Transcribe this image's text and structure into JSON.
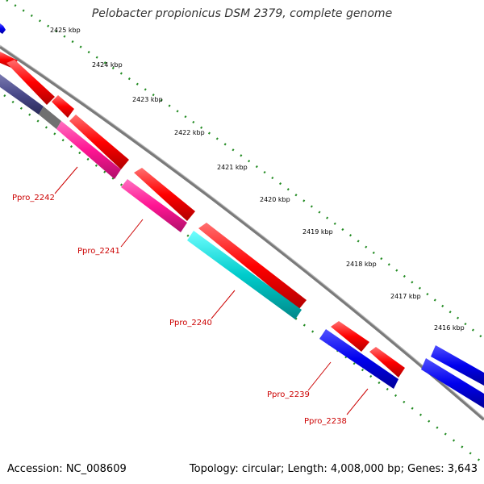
{
  "title": "Pelobacter propionicus DSM 2379, complete genome",
  "footer": {
    "accession": "Accession: NC_008609",
    "summary": "Topology: circular; Length: 4,008,000 bp; Genes: 3,643"
  },
  "scale_labels": [
    "2425 kbp",
    "2424 kbp",
    "2423 kbp",
    "2422 kbp",
    "2421 kbp",
    "2420 kbp",
    "2419 kbp",
    "2418 kbp",
    "2417 kbp",
    "2416 kbp"
  ],
  "locus_labels": [
    "Ppro_2242",
    "Ppro_2241",
    "Ppro_2240",
    "Ppro_2239",
    "Ppro_2238"
  ],
  "colors": {
    "forward": "#ff0000",
    "reverse": "#0000ee",
    "backbone": "#808080",
    "ticks": "#228b22",
    "magenta": "#ff1493",
    "cyan": "#00cccc",
    "slate": "#4a4a8a",
    "label": "#cc0000"
  }
}
